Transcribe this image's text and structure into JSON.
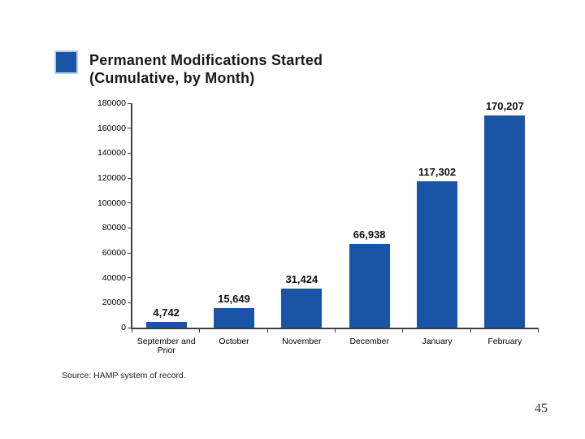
{
  "slide": {
    "page_number": "45",
    "source_note": "Source: HAMP system of record."
  },
  "title": {
    "line1": "Permanent Modifications Started",
    "line2": "(Cumulative, by Month)"
  },
  "legend": {
    "swatch_color": "#1a54a6"
  },
  "chart_data": {
    "type": "bar",
    "title": "Permanent Modifications Started (Cumulative, by Month)",
    "categories": [
      "September and Prior",
      "October",
      "November",
      "December",
      "January",
      "February"
    ],
    "values": [
      4742,
      15649,
      31424,
      66938,
      117302,
      170207
    ],
    "value_labels": [
      "4,742",
      "15,649",
      "31,424",
      "66,938",
      "117,302",
      "170,207"
    ],
    "y_ticks": [
      0,
      20000,
      40000,
      60000,
      80000,
      100000,
      120000,
      140000,
      160000,
      180000
    ],
    "ylim": [
      0,
      180000
    ],
    "xlabel": "",
    "ylabel": "",
    "grid": "off",
    "legend_position": "none",
    "bar_color": "#1a54a6",
    "axis_color": "#404040",
    "label_color": "#111111"
  }
}
